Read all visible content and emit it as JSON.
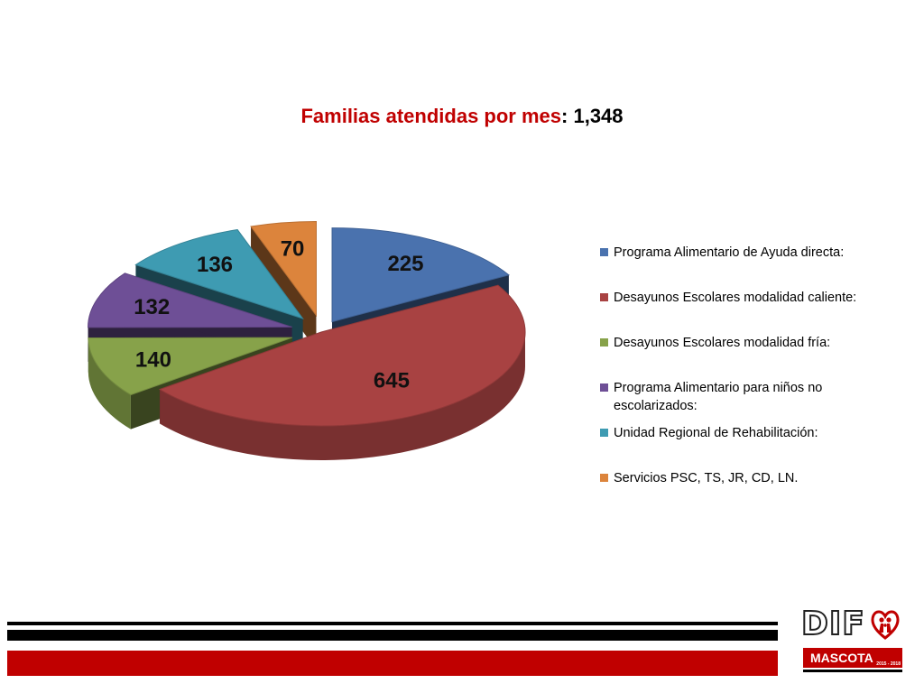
{
  "title": {
    "label": "Familias atendidas por mes",
    "separator": ": ",
    "total": "1,348"
  },
  "chart_data": {
    "type": "pie",
    "style": "3d-exploded",
    "categories": [
      "Programa Alimentario de Ayuda directa:",
      "Desayunos Escolares modalidad caliente:",
      "Desayunos Escolares modalidad fría:",
      "Programa Alimentario para niños no escolarizados:",
      "Unidad Regional de Rehabilitación:",
      "Servicios PSC, TS, JR, CD, LN."
    ],
    "values": [
      225,
      645,
      140,
      132,
      136,
      70
    ],
    "data_labels": [
      "225",
      "645",
      "140",
      "132",
      "136",
      "70"
    ],
    "colors": [
      "#4a72ae",
      "#a84242",
      "#87a24a",
      "#6e4f96",
      "#3e9bb2",
      "#dc843c"
    ],
    "legend_position": "right"
  },
  "legend": {
    "items": [
      {
        "label": "Programa Alimentario de Ayuda directa:",
        "color": "#4a72ae"
      },
      {
        "label": "Desayunos Escolares modalidad caliente:",
        "color": "#a84242"
      },
      {
        "label": "Desayunos Escolares modalidad fría:",
        "color": "#87a24a"
      },
      {
        "label": "Programa Alimentario para niños no escolarizados:",
        "color": "#6e4f96"
      },
      {
        "label": "Unidad Regional de Rehabilitación:",
        "color": "#3e9bb2"
      },
      {
        "label": "Servicios PSC, TS, JR, CD, LN.",
        "color": "#dc843c"
      }
    ]
  },
  "footer": {
    "logo_text": "DIF",
    "logo_band": "MASCOTA",
    "logo_years": "2015 - 2018",
    "accent": "#c00000"
  }
}
